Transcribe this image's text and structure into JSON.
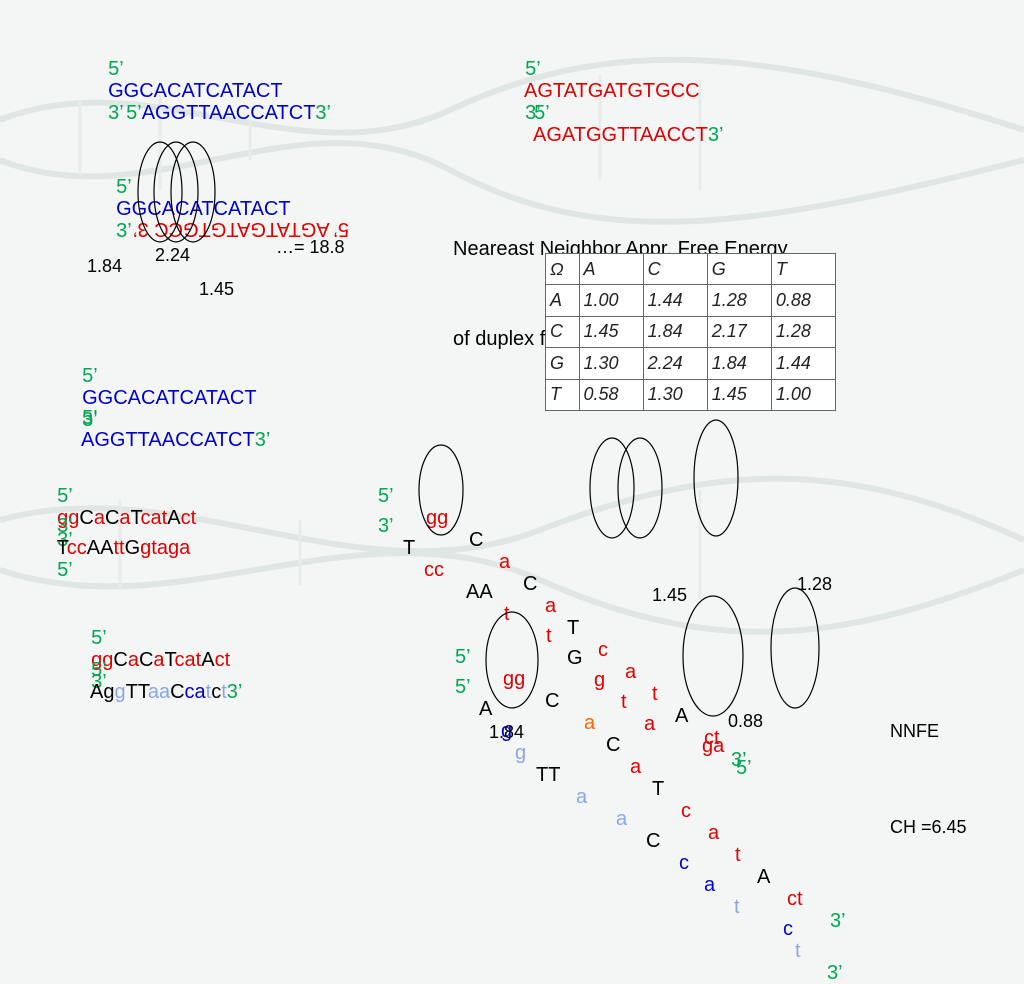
{
  "top_pair": {
    "left_line1": {
      "p5": "5’",
      "seq": "GGCACATCATACT",
      "p3": "3’"
    },
    "left_line2": {
      "p5": "5’",
      "seq": "AGGTTAACCATCT",
      "p3": "3’"
    },
    "right_line1": {
      "p5": "5’",
      "seq": "AGTATGATGTGCC",
      "p3": "3’"
    },
    "right_line2": {
      "p5": "5’",
      "seq": "AGATGGTTAACCT",
      "p3": "3’"
    }
  },
  "example": {
    "line1": {
      "p5": "5’",
      "seq": "GGCACATCATACT",
      "p3": "3’"
    },
    "line2_mirrored": "5’ AGTATGATGTGCC 3’",
    "val_a": "1.84",
    "val_b": "2.24",
    "val_c": "1.45",
    "sum": "…= 18.8"
  },
  "nn_title": {
    "line1": "Neareast Neighbor Appr. Free Energy",
    "line2": "of duplex formation (WC)"
  },
  "omega_table": {
    "header": [
      "Ω",
      "A",
      "C",
      "G",
      "T"
    ],
    "rows": [
      [
        "A",
        "1.00",
        "1.44",
        "1.28",
        "0.88"
      ],
      [
        "C",
        "1.45",
        "1.84",
        "2.17",
        "1.28"
      ],
      [
        "G",
        "1.30",
        "2.24",
        "1.84",
        "1.44"
      ],
      [
        "T",
        "0.58",
        "1.30",
        "1.45",
        "1.00"
      ]
    ]
  },
  "mid_pair": {
    "line1": {
      "p5": "5’",
      "seq": "GGCACATCATACT",
      "p3": "3’"
    },
    "line2": {
      "p5": "5’",
      "seq": "AGGTTAACCATCT",
      "p3": "3’"
    }
  },
  "duplex_left": {
    "l1_p5": "5’",
    "l1_p3": "3’",
    "l1": [
      [
        "gg",
        "r"
      ],
      [
        "C",
        "k"
      ],
      [
        "a",
        "r"
      ],
      [
        "C",
        "k"
      ],
      [
        "a",
        "r"
      ],
      [
        "T",
        "k"
      ],
      [
        "cat",
        "r"
      ],
      [
        "A",
        "k"
      ],
      [
        "ct",
        "r"
      ]
    ],
    "l2_p3": "3’",
    "l2_p5": "5’",
    "l2": [
      [
        "T",
        "k"
      ],
      [
        "cc",
        "r"
      ],
      [
        "AA",
        "k"
      ],
      [
        "tt",
        "r"
      ],
      [
        "G",
        "k"
      ],
      [
        "gtaga",
        "r"
      ]
    ]
  },
  "duplex_right": {
    "l1_p5": "5’",
    "l1_p3": "3’",
    "l1": {
      "gg": "gg",
      "C": "C",
      "a": "a",
      "C2": "C",
      "a2": "a",
      "T": "T",
      "c": "c",
      "a3": "a",
      "t": "t",
      "A": "A",
      "ct": "ct"
    },
    "l2_p3": "3’",
    "l2_p5": "5’",
    "l2": {
      "T": "T",
      "cc": "cc",
      "AA": "AA",
      "t": "t",
      "t2": "t",
      "G": "G",
      "g": "g",
      "t3": "t",
      "a": "a",
      "ga": "ga"
    }
  },
  "bottom_left": {
    "l1_p5": "5’",
    "l1_p3": "3’",
    "l1": [
      [
        "gg",
        "r"
      ],
      [
        "C",
        "k"
      ],
      [
        "a",
        "r"
      ],
      [
        "C",
        "k"
      ],
      [
        "a",
        "r"
      ],
      [
        "T",
        "k"
      ],
      [
        "cat",
        "r"
      ],
      [
        "A",
        "k"
      ],
      [
        "ct",
        "r"
      ]
    ],
    "l2_p5": "5’",
    "l2_p3": "3’",
    "l2": [
      [
        "A",
        "k"
      ],
      [
        "g",
        "k"
      ],
      [
        "g",
        "lb"
      ],
      [
        "TT",
        "k"
      ],
      [
        "aa",
        "lb"
      ],
      [
        "C",
        "k"
      ],
      [
        "ca",
        "b"
      ],
      [
        "t",
        "lb"
      ],
      [
        "c",
        "k"
      ],
      [
        "t",
        "lb"
      ]
    ]
  },
  "bottom_right": {
    "l1_p5": "5’",
    "l1_p3": "3’",
    "l1": {
      "gg": "gg",
      "C": "C",
      "a": "a",
      "C2": "C",
      "a2": "a",
      "T": "T",
      "c": "c",
      "a3": "a",
      "t": "t",
      "A": "A",
      "ct": "ct"
    },
    "l2_p5": "5’",
    "l2_p3": "3’",
    "l2": {
      "A": "A",
      "g": "g",
      "g2": "g",
      "TT": "TT",
      "a": "a",
      "a2": "a",
      "C": "C",
      "c": "c",
      "a3": "a",
      "t": "t",
      "c2": "c",
      "t2": "t"
    }
  },
  "values": {
    "v145": "1.45",
    "v128": "1.28",
    "v184": "1.84",
    "v088": "0.88"
  },
  "nnfe": {
    "line1": "NNFE",
    "line2": "CH =6.45"
  },
  "colors": {
    "green": "#00a651",
    "blue": "#0000cc",
    "red": "#e00000",
    "orange": "#ff6600",
    "light_blue": "#8aa6e8"
  }
}
